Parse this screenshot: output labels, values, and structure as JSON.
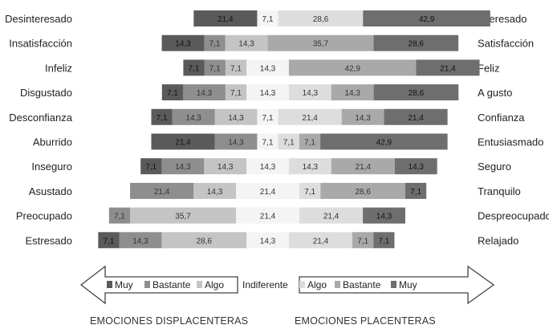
{
  "chart_data": {
    "type": "bar",
    "subtype": "diverging-stacked-horizontal",
    "rows": [
      {
        "left_label": "Desinteresado",
        "right_label": "Interesado",
        "neg": {
          "muy": 21.4,
          "bastante": null,
          "algo": null
        },
        "indiferente": 7.1,
        "pos": {
          "algo": 28.6,
          "bastante": null,
          "muy": 42.9
        }
      },
      {
        "left_label": "Insatisfacción",
        "right_label": "Satisfacción",
        "neg": {
          "muy": 14.3,
          "bastante": 7.1,
          "algo": 14.3
        },
        "indiferente": null,
        "pos": {
          "algo": null,
          "bastante": 35.7,
          "muy": 28.6
        }
      },
      {
        "left_label": "Infeliz",
        "right_label": "Feliz",
        "neg": {
          "muy": 7.1,
          "bastante": 7.1,
          "algo": 7.1
        },
        "indiferente": 14.3,
        "pos": {
          "algo": null,
          "bastante": 42.9,
          "muy": 21.4
        }
      },
      {
        "left_label": "Disgustado",
        "right_label": "A gusto",
        "neg": {
          "muy": 7.1,
          "bastante": 14.3,
          "algo": 7.1
        },
        "indiferente": 14.3,
        "pos": {
          "algo": 14.3,
          "bastante": 14.3,
          "muy": 28.6
        }
      },
      {
        "left_label": "Desconfianza",
        "right_label": "Confianza",
        "neg": {
          "muy": 7.1,
          "bastante": 14.3,
          "algo": 14.3
        },
        "indiferente": 7.1,
        "pos": {
          "algo": 21.4,
          "bastante": 14.3,
          "muy": 21.4
        }
      },
      {
        "left_label": "Aburrido",
        "right_label": "Entusiasmado",
        "neg": {
          "muy": 21.4,
          "bastante": 14.3,
          "algo": null
        },
        "indiferente": 7.1,
        "pos": {
          "algo": 7.1,
          "bastante": 7.1,
          "muy": 42.9
        }
      },
      {
        "left_label": "Inseguro",
        "right_label": "Seguro",
        "neg": {
          "muy": 7.1,
          "bastante": 14.3,
          "algo": 14.3
        },
        "indiferente": 14.3,
        "pos": {
          "algo": 14.3,
          "bastante": 21.4,
          "muy": 14.3
        }
      },
      {
        "left_label": "Asustado",
        "right_label": "Tranquilo",
        "neg": {
          "muy": null,
          "bastante": 21.4,
          "algo": 14.3
        },
        "indiferente": 21.4,
        "pos": {
          "algo": 7.1,
          "bastante": 28.6,
          "muy": 7.1
        }
      },
      {
        "left_label": "Preocupado",
        "right_label": "Despreocupado",
        "neg": {
          "muy": null,
          "bastante": 7.1,
          "algo": 35.7
        },
        "indiferente": 21.4,
        "pos": {
          "algo": 21.4,
          "bastante": null,
          "muy": 14.3
        }
      },
      {
        "left_label": "Estresado",
        "right_label": "Relajado",
        "neg": {
          "muy": 7.1,
          "bastante": 14.3,
          "algo": 28.6
        },
        "indiferente": 14.3,
        "pos": {
          "algo": 21.4,
          "bastante": 7.1,
          "muy": 7.1
        }
      }
    ],
    "legend_negative": [
      "Muy",
      "Bastante",
      "Algo"
    ],
    "legend_neutral": "Indiferente",
    "legend_positive": [
      "Algo",
      "Bastante",
      "Muy"
    ],
    "caption_negative": "EMOCIONES DISPLACENTERAS",
    "caption_positive": "EMOCIONES PLACENTERAS",
    "colors": {
      "neg_muy": "#5a5a5a",
      "neg_bastante": "#8e8e8e",
      "neg_algo": "#c4c4c4",
      "indiferente": "#f4f4f4",
      "pos_algo": "#dddddd",
      "pos_bastante": "#a9a9a9",
      "pos_muy": "#6e6e6e"
    }
  }
}
